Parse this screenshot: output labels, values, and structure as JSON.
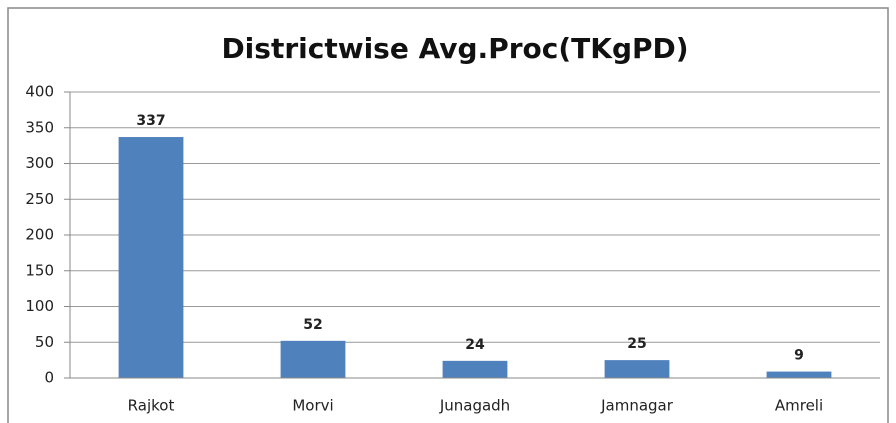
{
  "chart_data": {
    "type": "bar",
    "title": "Districtwise Avg.Proc(TKgPD)",
    "categories": [
      "Rajkot",
      "Morvi",
      "Junagadh",
      "Jamnagar",
      "Amreli"
    ],
    "values": [
      337,
      52,
      24,
      25,
      9
    ],
    "color": "#4f81bd",
    "ylim": [
      0,
      400
    ],
    "yticks": [
      0,
      50,
      100,
      150,
      200,
      250,
      300,
      350,
      400
    ],
    "grid": true
  }
}
